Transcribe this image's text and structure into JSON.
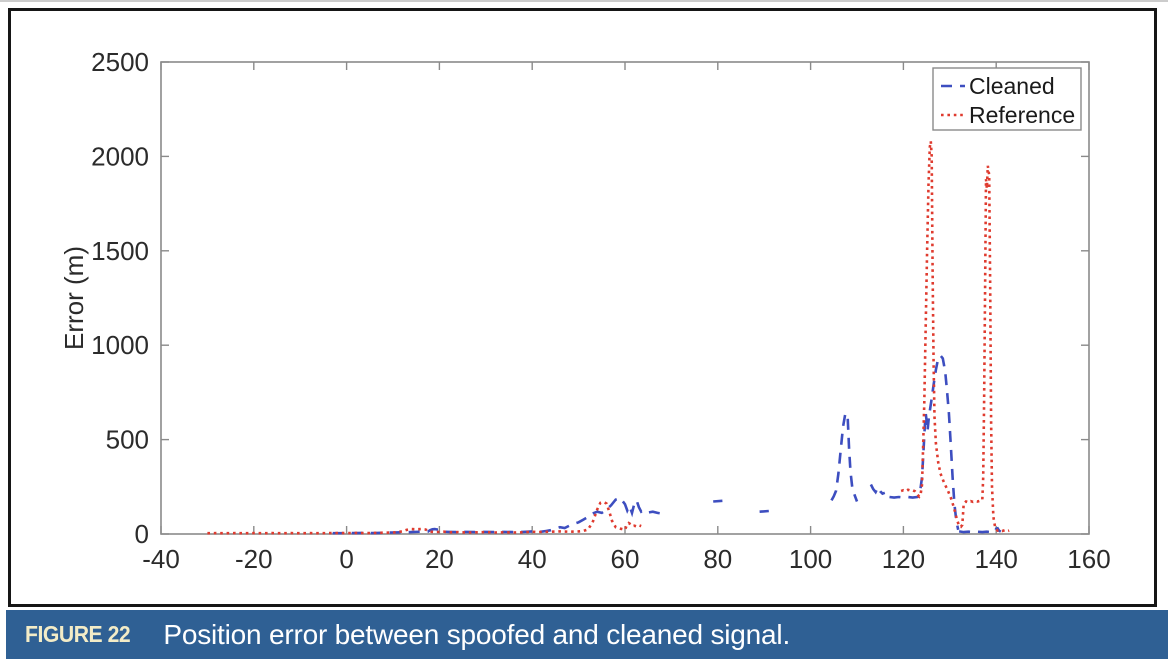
{
  "figure": {
    "caption": {
      "label": "FIGURE 22",
      "text": "Position error between spoofed and cleaned signal."
    },
    "colors": {
      "caption_bar": "#2f6094",
      "caption_label": "#f3ecc7",
      "caption_text": "#ffffff",
      "figure_border": "#161616",
      "axis": "#8a8a8a",
      "tick_text": "#2b2b2b"
    }
  },
  "chart_data": {
    "type": "line",
    "title": "",
    "xlabel": "",
    "ylabel": "Error (m)",
    "xlim": [
      -40,
      160
    ],
    "ylim": [
      0,
      2500
    ],
    "xticks": [
      -40,
      -20,
      0,
      20,
      40,
      60,
      80,
      100,
      120,
      140,
      160
    ],
    "yticks": [
      0,
      500,
      1000,
      1500,
      2000,
      2500
    ],
    "grid": false,
    "legend_position": "top-right",
    "series": [
      {
        "name": "Cleaned",
        "color": "#3d4ec0",
        "style": "dashed",
        "segments": [
          [
            [
              -3,
              4
            ],
            [
              0,
              5
            ],
            [
              2,
              5
            ],
            [
              4,
              6
            ],
            [
              6,
              5
            ],
            [
              8,
              7
            ],
            [
              10,
              8
            ],
            [
              12,
              9
            ],
            [
              14,
              10
            ],
            [
              16,
              12
            ],
            [
              17.5,
              12
            ],
            [
              18,
              20
            ],
            [
              18.5,
              25
            ],
            [
              19,
              26
            ],
            [
              19.5,
              24
            ],
            [
              20,
              25
            ],
            [
              20.5,
              14
            ],
            [
              21,
              12
            ],
            [
              22,
              11
            ],
            [
              24,
              10
            ],
            [
              26,
              11
            ],
            [
              28,
              10
            ],
            [
              30,
              11
            ],
            [
              32,
              10
            ],
            [
              34,
              11
            ],
            [
              36,
              10
            ],
            [
              38,
              11
            ],
            [
              40,
              14
            ],
            [
              42,
              12
            ],
            [
              43,
              16
            ],
            [
              44,
              20
            ],
            [
              45,
              28
            ],
            [
              46,
              36
            ],
            [
              47,
              32
            ],
            [
              48,
              44
            ],
            [
              49,
              54
            ],
            [
              50,
              62
            ],
            [
              51,
              76
            ],
            [
              52,
              90
            ],
            [
              53,
              108
            ],
            [
              54,
              118
            ],
            [
              55,
              112
            ],
            [
              56,
              128
            ],
            [
              57,
              152
            ],
            [
              58,
              182
            ],
            [
              59,
              190
            ],
            [
              60,
              158
            ],
            [
              60.5,
              124
            ],
            [
              61,
              148
            ],
            [
              61.5,
              112
            ],
            [
              62,
              160
            ],
            [
              62.5,
              178
            ],
            [
              63,
              142
            ],
            [
              63.5,
              118
            ],
            [
              64,
              126
            ],
            [
              65,
              114
            ],
            [
              66,
              118
            ],
            [
              67,
              112
            ],
            [
              68,
              108
            ]
          ],
          [
            [
              79,
              172
            ],
            [
              81,
              176
            ]
          ],
          [
            [
              89,
              118
            ],
            [
              91,
              122
            ]
          ],
          [
            [
              104.5,
              178
            ],
            [
              105,
              200
            ],
            [
              105.5,
              230
            ],
            [
              106,
              320
            ],
            [
              106.5,
              450
            ],
            [
              107,
              570
            ],
            [
              107.5,
              640
            ],
            [
              108,
              615
            ],
            [
              108.3,
              450
            ],
            [
              108.6,
              330
            ],
            [
              109,
              240
            ],
            [
              109.5,
              205
            ],
            [
              110,
              172
            ]
          ],
          [
            [
              113,
              262
            ],
            [
              113.5,
              238
            ],
            [
              114,
              222
            ],
            [
              114.5,
              248
            ],
            [
              115,
              226
            ],
            [
              115.5,
              214
            ],
            [
              116,
              218
            ]
          ],
          [
            [
              117,
              196
            ],
            [
              118,
              193
            ],
            [
              119,
              196
            ],
            [
              120,
              194
            ],
            [
              121,
              196
            ],
            [
              122,
              193
            ],
            [
              123,
              196
            ],
            [
              123.5,
              205
            ],
            [
              124,
              300
            ],
            [
              124.3,
              430
            ],
            [
              124.6,
              560
            ],
            [
              124.8,
              640
            ],
            [
              125,
              600
            ],
            [
              125.2,
              545
            ],
            [
              125.5,
              620
            ],
            [
              126,
              700
            ],
            [
              126.5,
              790
            ],
            [
              127,
              870
            ],
            [
              127.5,
              930
            ],
            [
              128,
              945
            ],
            [
              128.5,
              930
            ],
            [
              129,
              860
            ],
            [
              129.4,
              760
            ],
            [
              129.8,
              640
            ],
            [
              130.2,
              480
            ],
            [
              130.6,
              300
            ],
            [
              131,
              160
            ],
            [
              131.4,
              70
            ],
            [
              131.8,
              22
            ]
          ],
          [
            [
              132,
              14
            ],
            [
              133,
              10
            ],
            [
              134,
              12
            ],
            [
              135,
              10
            ],
            [
              136,
              12
            ],
            [
              137,
              10
            ],
            [
              138,
              12
            ],
            [
              139,
              10
            ],
            [
              139.7,
              12
            ],
            [
              140,
              28
            ],
            [
              140.3,
              30
            ],
            [
              140.6,
              18
            ],
            [
              141,
              12
            ]
          ]
        ]
      },
      {
        "name": "Reference",
        "color": "#df3b2f",
        "style": "dotted",
        "segments": [
          [
            [
              -30,
              4
            ],
            [
              -28,
              5
            ],
            [
              -26,
              4
            ],
            [
              -24,
              5
            ],
            [
              -22,
              4
            ],
            [
              -20,
              5
            ],
            [
              -18,
              4
            ],
            [
              -16,
              5
            ],
            [
              -14,
              4
            ],
            [
              -12,
              5
            ],
            [
              -10,
              4
            ],
            [
              -8,
              5
            ],
            [
              -6,
              4
            ],
            [
              -4,
              5
            ],
            [
              -2,
              5
            ],
            [
              0,
              5
            ],
            [
              2,
              6
            ],
            [
              4,
              5
            ],
            [
              6,
              6
            ],
            [
              8,
              7
            ],
            [
              10,
              8
            ],
            [
              11,
              10
            ],
            [
              12,
              14
            ],
            [
              13,
              22
            ],
            [
              14,
              26
            ],
            [
              15,
              25
            ],
            [
              16,
              26
            ],
            [
              17,
              24
            ],
            [
              18,
              12
            ],
            [
              19,
              10
            ],
            [
              20,
              11
            ],
            [
              21,
              12
            ],
            [
              22,
              9
            ],
            [
              24,
              10
            ],
            [
              26,
              8
            ],
            [
              28,
              9
            ],
            [
              30,
              10
            ],
            [
              32,
              8
            ],
            [
              34,
              9
            ],
            [
              36,
              8
            ],
            [
              38,
              9
            ],
            [
              40,
              12
            ],
            [
              41,
              10
            ],
            [
              42,
              11
            ],
            [
              44,
              12
            ],
            [
              46,
              14
            ],
            [
              48,
              12
            ],
            [
              50,
              14
            ],
            [
              51,
              16
            ],
            [
              52,
              24
            ],
            [
              53,
              60
            ],
            [
              54,
              130
            ],
            [
              54.7,
              165
            ],
            [
              55.3,
              170
            ],
            [
              56,
              162
            ],
            [
              56.6,
              120
            ],
            [
              57.2,
              70
            ],
            [
              58,
              36
            ],
            [
              59,
              28
            ],
            [
              60,
              22
            ],
            [
              60.4,
              48
            ],
            [
              60.8,
              58
            ],
            [
              61.2,
              52
            ],
            [
              61.6,
              42
            ],
            [
              62,
              44
            ],
            [
              62.5,
              40
            ],
            [
              63,
              46
            ],
            [
              63.5,
              42
            ]
          ],
          [
            [
              119.5,
              228
            ],
            [
              120,
              232
            ],
            [
              120.5,
              228
            ],
            [
              121,
              234
            ],
            [
              121.5,
              230
            ],
            [
              122,
              232
            ],
            [
              122.5,
              226
            ],
            [
              123,
              210
            ],
            [
              123.4,
              198
            ],
            [
              123.7,
              210
            ],
            [
              124,
              260
            ],
            [
              124.2,
              420
            ],
            [
              124.5,
              700
            ],
            [
              124.8,
              1100
            ],
            [
              125.1,
              1500
            ],
            [
              125.4,
              1850
            ],
            [
              125.7,
              2050
            ],
            [
              125.9,
              2080
            ],
            [
              126.1,
              2000
            ],
            [
              126.3,
              1400
            ],
            [
              126.5,
              900
            ],
            [
              126.7,
              620
            ],
            [
              127,
              480
            ],
            [
              127.5,
              380
            ],
            [
              128,
              320
            ],
            [
              128.8,
              270
            ],
            [
              129.6,
              230
            ],
            [
              130.4,
              180
            ],
            [
              131,
              130
            ],
            [
              131.5,
              80
            ],
            [
              132,
              42
            ],
            [
              132.4,
              38
            ],
            [
              132.7,
              48
            ],
            [
              133,
              160
            ],
            [
              133.5,
              172
            ],
            [
              134,
              168
            ],
            [
              134.5,
              174
            ],
            [
              135,
              170
            ],
            [
              135.5,
              174
            ],
            [
              136,
              172
            ],
            [
              136.5,
              176
            ],
            [
              137,
              180
            ],
            [
              137.2,
              300
            ],
            [
              137.4,
              700
            ],
            [
              137.6,
              1300
            ],
            [
              137.8,
              1880
            ],
            [
              138,
              1830
            ],
            [
              138.2,
              1950
            ],
            [
              138.5,
              1900
            ],
            [
              138.7,
              1300
            ],
            [
              138.9,
              600
            ],
            [
              139.1,
              250
            ],
            [
              139.4,
              90
            ],
            [
              139.8,
              30
            ],
            [
              140.3,
              18
            ],
            [
              140.8,
              20
            ],
            [
              141.3,
              16
            ],
            [
              141.8,
              20
            ],
            [
              142.3,
              15
            ],
            [
              142.8,
              18
            ]
          ]
        ]
      }
    ]
  }
}
